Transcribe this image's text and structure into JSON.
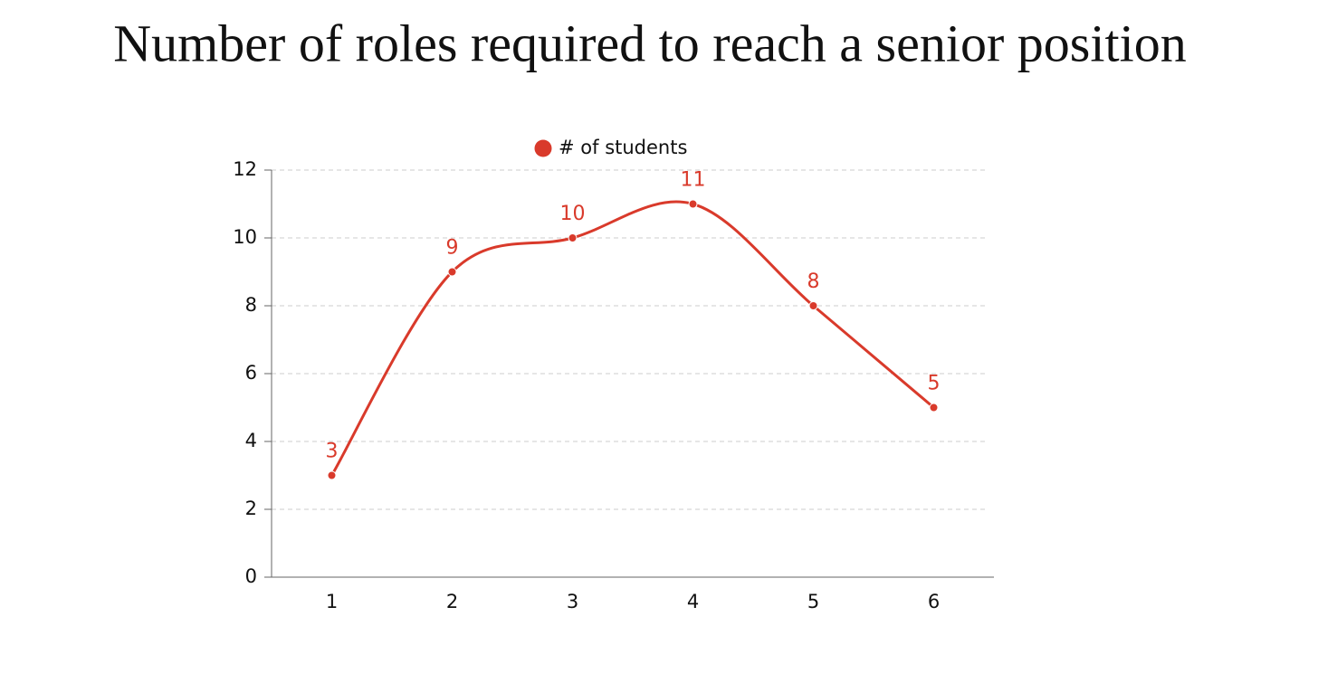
{
  "chart_data": {
    "type": "line",
    "title": "Number of roles required to reach a senior position",
    "categories": [
      "1",
      "2",
      "3",
      "4",
      "5",
      "6"
    ],
    "series": [
      {
        "name": "# of students",
        "color": "#d93a2b",
        "values": [
          3,
          9,
          10,
          11,
          8,
          5
        ]
      }
    ],
    "ylim": [
      0,
      12
    ],
    "yticks": [
      0,
      2,
      4,
      6,
      8,
      10,
      12
    ],
    "grid": true,
    "legend": "top",
    "smooth": true,
    "data_labels": true
  }
}
